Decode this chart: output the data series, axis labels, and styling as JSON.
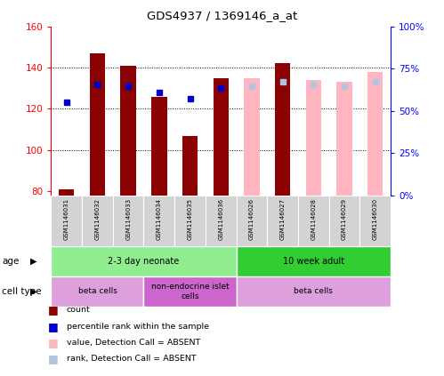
{
  "title": "GDS4937 / 1369146_a_at",
  "samples": [
    "GSM1146031",
    "GSM1146032",
    "GSM1146033",
    "GSM1146034",
    "GSM1146035",
    "GSM1146036",
    "GSM1146026",
    "GSM1146027",
    "GSM1146028",
    "GSM1146029",
    "GSM1146030"
  ],
  "count_values": [
    81,
    147,
    141,
    126,
    107,
    135,
    null,
    142,
    null,
    null,
    null
  ],
  "count_absent": [
    null,
    null,
    null,
    null,
    null,
    null,
    135,
    null,
    134,
    133,
    138
  ],
  "percentile_values": [
    123,
    132,
    131,
    128,
    125,
    130,
    null,
    133,
    null,
    null,
    null
  ],
  "percentile_absent": [
    null,
    null,
    null,
    null,
    null,
    null,
    131,
    133,
    132,
    131,
    133
  ],
  "ylim_left": [
    78,
    160
  ],
  "ylim_right": [
    0,
    100
  ],
  "yticks_left": [
    80,
    100,
    120,
    140,
    160
  ],
  "yticks_right": [
    0,
    25,
    50,
    75,
    100
  ],
  "ytick_labels_right": [
    "0%",
    "25%",
    "50%",
    "75%",
    "100%"
  ],
  "color_count": "#8B0000",
  "color_percentile": "#0000CD",
  "color_count_absent": "#FFB6C1",
  "color_percentile_absent": "#B0C4DE",
  "age_groups": [
    {
      "label": "2-3 day neonate",
      "start": 0,
      "end": 6,
      "color": "#90EE90"
    },
    {
      "label": "10 week adult",
      "start": 6,
      "end": 11,
      "color": "#32CD32"
    }
  ],
  "cell_type_groups": [
    {
      "label": "beta cells",
      "start": 0,
      "end": 3,
      "color": "#DDA0DD"
    },
    {
      "label": "non-endocrine islet\ncells",
      "start": 3,
      "end": 6,
      "color": "#CC66CC"
    },
    {
      "label": "beta cells",
      "start": 6,
      "end": 11,
      "color": "#DDA0DD"
    }
  ],
  "legend_labels": [
    "count",
    "percentile rank within the sample",
    "value, Detection Call = ABSENT",
    "rank, Detection Call = ABSENT"
  ],
  "legend_colors": [
    "#8B0000",
    "#0000CD",
    "#FFB6C1",
    "#B0C4DE"
  ]
}
